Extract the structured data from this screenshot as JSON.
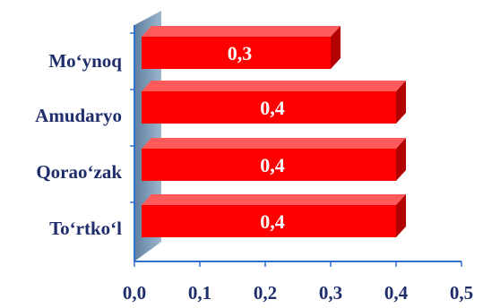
{
  "chart_data": {
    "type": "bar",
    "orientation": "horizontal",
    "three_d": true,
    "categories": [
      "Mo‘ynoq",
      "Amudaryo",
      "Qorao‘zak",
      "To‘rtko‘l"
    ],
    "values": [
      0.3,
      0.4,
      0.4,
      0.4
    ],
    "data_labels": [
      "0,3",
      "0,4",
      "0,4",
      "0,4"
    ],
    "xlim": [
      0,
      0.5
    ],
    "x_ticks": [
      0,
      0.1,
      0.2,
      0.3,
      0.4,
      0.5
    ],
    "x_tick_labels": [
      "0,0",
      "0,1",
      "0,2",
      "0,3",
      "0,4",
      "0,5"
    ],
    "title": "",
    "xlabel": "",
    "ylabel": "",
    "grid": false,
    "legend": "none",
    "colors": {
      "bar_front": "#ff0000",
      "bar_top": "#ff5a5a",
      "bar_side": "#b30000",
      "wall": "#6e8fb0",
      "axis": "#2f6fd0",
      "label_text": "#1f2d6b",
      "data_label_text": "#ffffff"
    }
  }
}
